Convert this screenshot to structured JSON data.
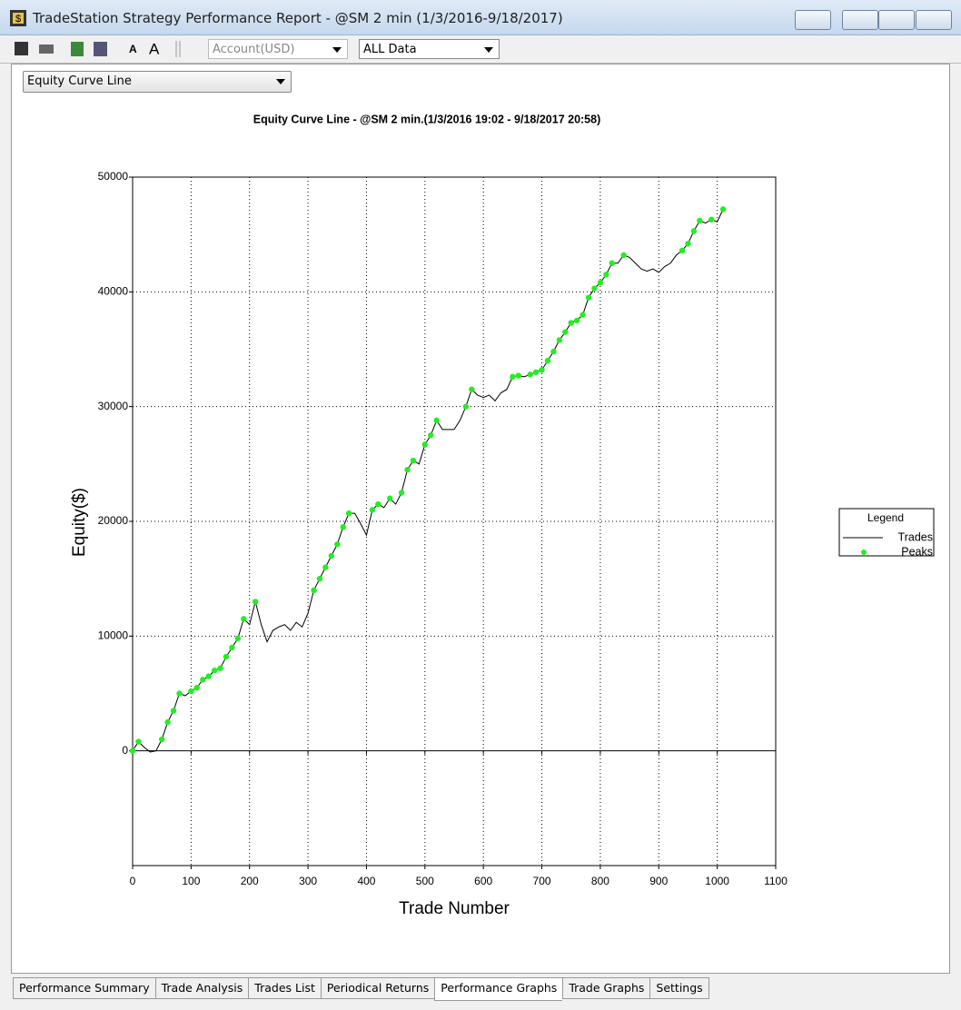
{
  "window": {
    "title": "TradeStation Strategy Performance Report - @SM 2 min (1/3/2016-9/18/2017)"
  },
  "toolbar": {
    "account": "Account(USD)",
    "range": "ALL Data"
  },
  "graph_selector": "Equity Curve Line",
  "tabs": [
    "Performance Summary",
    "Trade Analysis",
    "Trades List",
    "Periodical Returns",
    "Performance Graphs",
    "Trade Graphs",
    "Settings"
  ],
  "active_tab": 4,
  "chart_data": {
    "type": "line",
    "title": "Equity Curve Line - @SM 2 min.(1/3/2016 19:02 - 9/18/2017 20:58)",
    "x_label": "Trade Number",
    "y_label": "Equity($)",
    "legend_title": "Legend",
    "legend": "right",
    "grid": true,
    "xlim": [
      0,
      1100
    ],
    "xticks": [
      0,
      100,
      200,
      300,
      400,
      500,
      600,
      700,
      800,
      900,
      1000,
      1100
    ],
    "ylim": [
      -10000,
      50000
    ],
    "yticks": [
      0,
      10000,
      20000,
      30000,
      40000,
      50000
    ],
    "series": [
      {
        "name": "Trades",
        "color": "#000000",
        "style": "line",
        "x": [
          0,
          10,
          20,
          30,
          40,
          50,
          60,
          70,
          80,
          90,
          100,
          110,
          120,
          130,
          140,
          150,
          160,
          170,
          180,
          190,
          200,
          210,
          220,
          230,
          240,
          250,
          260,
          270,
          280,
          290,
          300,
          310,
          320,
          330,
          340,
          350,
          360,
          370,
          380,
          390,
          400,
          410,
          420,
          430,
          440,
          450,
          460,
          470,
          480,
          490,
          500,
          510,
          520,
          530,
          540,
          550,
          560,
          570,
          580,
          590,
          600,
          610,
          620,
          630,
          640,
          650,
          660,
          670,
          680,
          690,
          700,
          710,
          720,
          730,
          740,
          750,
          760,
          770,
          780,
          790,
          800,
          810,
          820,
          830,
          840,
          850,
          860,
          870,
          880,
          890,
          900,
          910,
          920,
          930,
          940,
          950,
          960,
          970,
          980,
          990,
          1000,
          1010
        ],
        "values": [
          0,
          800,
          300,
          -100,
          0,
          1000,
          2500,
          3500,
          5000,
          4800,
          5200,
          5500,
          6200,
          6500,
          7000,
          7200,
          8200,
          9000,
          9800,
          11500,
          11000,
          13000,
          11000,
          9500,
          10500,
          10800,
          11000,
          10500,
          11200,
          10800,
          12000,
          14000,
          15000,
          16000,
          17000,
          18000,
          19500,
          20700,
          20700,
          19800,
          18800,
          21000,
          21500,
          21200,
          22000,
          21500,
          22500,
          24500,
          25300,
          25000,
          26700,
          27500,
          28800,
          28000,
          28000,
          28000,
          28800,
          30000,
          31500,
          31000,
          30800,
          31000,
          30500,
          31200,
          31500,
          32600,
          32700,
          32600,
          32800,
          33000,
          33200,
          34000,
          34800,
          35800,
          36500,
          37300,
          37500,
          38000,
          39500,
          40300,
          40800,
          41500,
          42500,
          42500,
          43200,
          43000,
          42500,
          42000,
          41800,
          42000,
          41700,
          42200,
          42500,
          43200,
          43600,
          44200,
          45300,
          46200,
          46000,
          46300,
          46100,
          47200
        ]
      },
      {
        "name": "Peaks",
        "color": "#22ee22",
        "style": "dots",
        "x": [
          0,
          10,
          50,
          60,
          70,
          80,
          100,
          110,
          120,
          130,
          140,
          150,
          160,
          170,
          180,
          190,
          210,
          310,
          320,
          330,
          340,
          350,
          360,
          370,
          410,
          420,
          440,
          460,
          470,
          480,
          500,
          510,
          520,
          570,
          580,
          650,
          660,
          680,
          690,
          700,
          710,
          720,
          730,
          740,
          750,
          760,
          770,
          780,
          790,
          800,
          810,
          820,
          840,
          940,
          950,
          960,
          970,
          990,
          1010
        ],
        "values": [
          0,
          800,
          1000,
          2500,
          3500,
          5000,
          5200,
          5500,
          6200,
          6500,
          7000,
          7200,
          8200,
          9000,
          9800,
          11500,
          13000,
          14000,
          15000,
          16000,
          17000,
          18000,
          19500,
          20700,
          21000,
          21500,
          22000,
          22500,
          24500,
          25300,
          26700,
          27500,
          28800,
          30000,
          31500,
          32600,
          32700,
          32800,
          33000,
          33200,
          34000,
          34800,
          35800,
          36500,
          37300,
          37500,
          38000,
          39500,
          40300,
          40800,
          41500,
          42500,
          43200,
          43600,
          44200,
          45300,
          46200,
          46300,
          47200
        ]
      }
    ]
  }
}
